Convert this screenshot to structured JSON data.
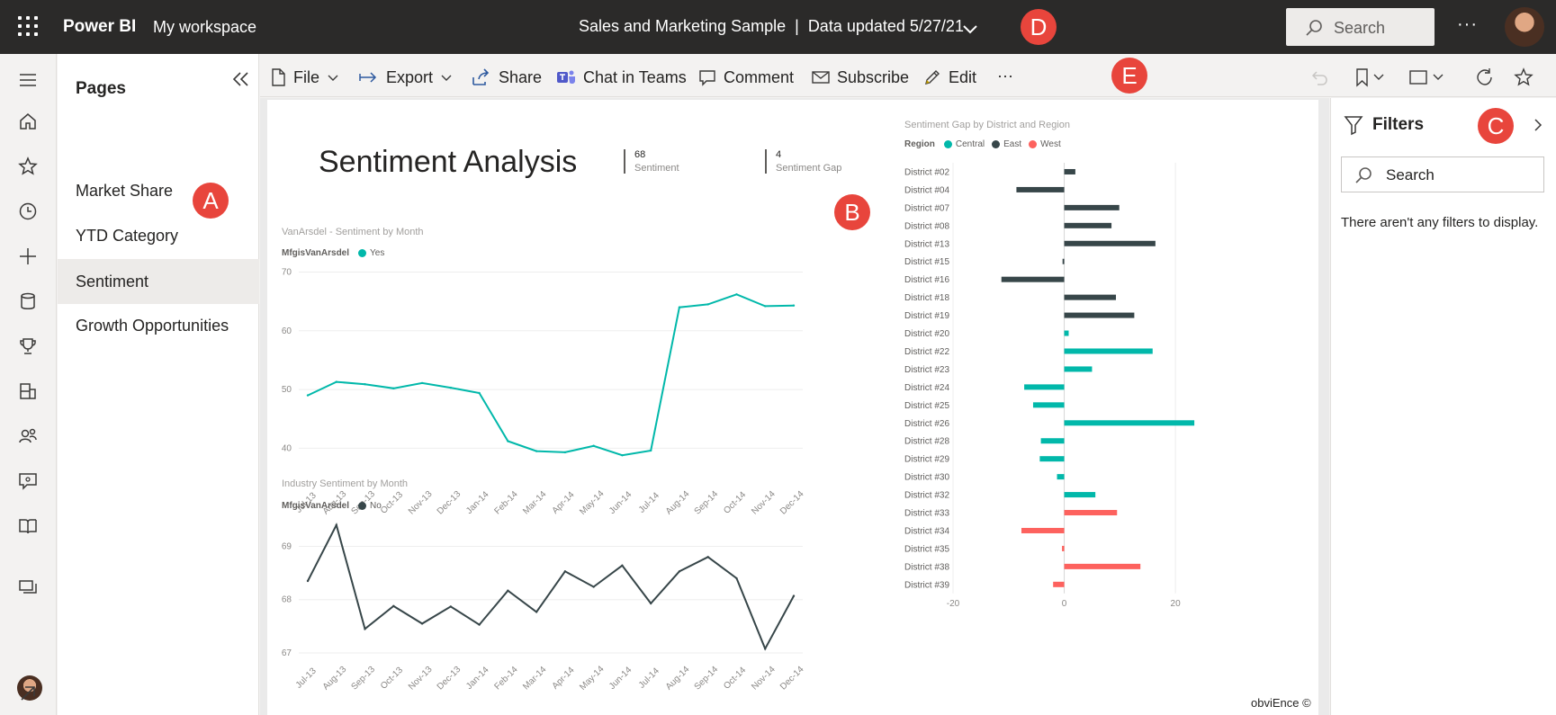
{
  "header": {
    "app_name": "Power BI",
    "workspace": "My workspace",
    "report_name": "Sales and Marketing Sample",
    "separator": "|",
    "data_updated": "Data updated 5/27/21",
    "search_placeholder": "Search",
    "more": "···"
  },
  "markers": {
    "a": "A",
    "b": "B",
    "c": "C",
    "d": "D",
    "e": "E"
  },
  "left_nav": {
    "icons": [
      "menu-icon",
      "home-icon",
      "favorites-icon",
      "recent-icon",
      "create-icon",
      "datasets-icon",
      "goals-icon",
      "apps-icon",
      "shared-icon",
      "learn-icon",
      "browse-icon",
      "workspaces-icon",
      "profile-avatar",
      "expand-icon"
    ]
  },
  "pages_pane": {
    "title": "Pages",
    "items": [
      {
        "label": "Market Share"
      },
      {
        "label": "YTD Category"
      },
      {
        "label": "Sentiment",
        "active": true
      },
      {
        "label": "Growth Opportunities"
      }
    ]
  },
  "toolbar": {
    "file": "File",
    "export": "Export",
    "share": "Share",
    "chat": "Chat in Teams",
    "comment": "Comment",
    "subscribe": "Subscribe",
    "edit": "Edit",
    "more": "···"
  },
  "report": {
    "title": "Sentiment Analysis",
    "cards": [
      {
        "value": "68",
        "label": "Sentiment"
      },
      {
        "value": "4",
        "label": "Sentiment Gap"
      }
    ],
    "copyright": "obviEnce ©"
  },
  "chart_data": [
    {
      "type": "line",
      "title": "VanArsdel - Sentiment by Month",
      "legend_title": "MfgisVanArsdel",
      "x": [
        "Jul-13",
        "Aug-13",
        "Sep-13",
        "Oct-13",
        "Nov-13",
        "Dec-13",
        "Jan-14",
        "Feb-14",
        "Mar-14",
        "Apr-14",
        "May-14",
        "Jun-14",
        "Jul-14",
        "Aug-14",
        "Sep-14",
        "Oct-14",
        "Nov-14",
        "Dec-14"
      ],
      "series": [
        {
          "name": "Yes",
          "color": "#01b8aa",
          "values": [
            49,
            51.3,
            50.9,
            50.2,
            51.1,
            50.3,
            49.4,
            41.2,
            39.5,
            39.3,
            40.4,
            38.8,
            39.6,
            64,
            64.5,
            66.2,
            64.2,
            64.3
          ]
        }
      ],
      "yticks": [
        40,
        50,
        60,
        70
      ],
      "ylim": [
        35,
        71
      ]
    },
    {
      "type": "line",
      "title": "Industry Sentiment by Month",
      "legend_title": "MfgisVanArsdel",
      "x": [
        "Jul-13",
        "Aug-13",
        "Sep-13",
        "Oct-13",
        "Nov-13",
        "Dec-13",
        "Jan-14",
        "Feb-14",
        "Mar-14",
        "Apr-14",
        "May-14",
        "Jun-14",
        "Jul-14",
        "Aug-14",
        "Sep-14",
        "Oct-14",
        "Nov-14",
        "Dec-14"
      ],
      "series": [
        {
          "name": "No",
          "color": "#374649",
          "values": [
            68.35,
            69.4,
            67.45,
            67.88,
            67.55,
            67.87,
            67.53,
            68.17,
            67.77,
            68.53,
            68.24,
            68.64,
            67.93,
            68.53,
            68.8,
            68.4,
            67.08,
            68.07
          ]
        }
      ],
      "yticks": [
        67,
        68,
        69
      ],
      "ylim": [
        67,
        69.7
      ]
    },
    {
      "type": "bar",
      "orientation": "horizontal",
      "title": "Sentiment Gap by District and Region",
      "legend_title": "Region",
      "legend": [
        {
          "name": "Central",
          "color": "#01b8aa"
        },
        {
          "name": "East",
          "color": "#374649"
        },
        {
          "name": "West",
          "color": "#fd625e"
        }
      ],
      "categories": [
        "District #02",
        "District #04",
        "District #07",
        "District #08",
        "District #13",
        "District #15",
        "District #16",
        "District #18",
        "District #19",
        "District #20",
        "District #22",
        "District #23",
        "District #24",
        "District #25",
        "District #26",
        "District #28",
        "District #29",
        "District #30",
        "District #32",
        "District #33",
        "District #34",
        "District #35",
        "District #38",
        "District #39"
      ],
      "values": [
        2,
        -8.6,
        9.9,
        8.5,
        16.4,
        -0.3,
        -11.3,
        9.3,
        12.6,
        0.8,
        15.9,
        5,
        -7.2,
        -5.6,
        23.4,
        -4.2,
        -4.4,
        -1.3,
        5.6,
        9.5,
        -7.7,
        -0.4,
        13.7,
        -2
      ],
      "regions": [
        "East",
        "East",
        "East",
        "East",
        "East",
        "East",
        "East",
        "East",
        "East",
        "Central",
        "Central",
        "Central",
        "Central",
        "Central",
        "Central",
        "Central",
        "Central",
        "Central",
        "Central",
        "West",
        "West",
        "West",
        "West",
        "West"
      ],
      "xticks": [
        -20,
        0,
        20
      ],
      "xlim": [
        -20,
        25
      ]
    }
  ],
  "filters": {
    "title": "Filters",
    "search_placeholder": "Search",
    "empty_message": "There aren't any filters to display."
  }
}
